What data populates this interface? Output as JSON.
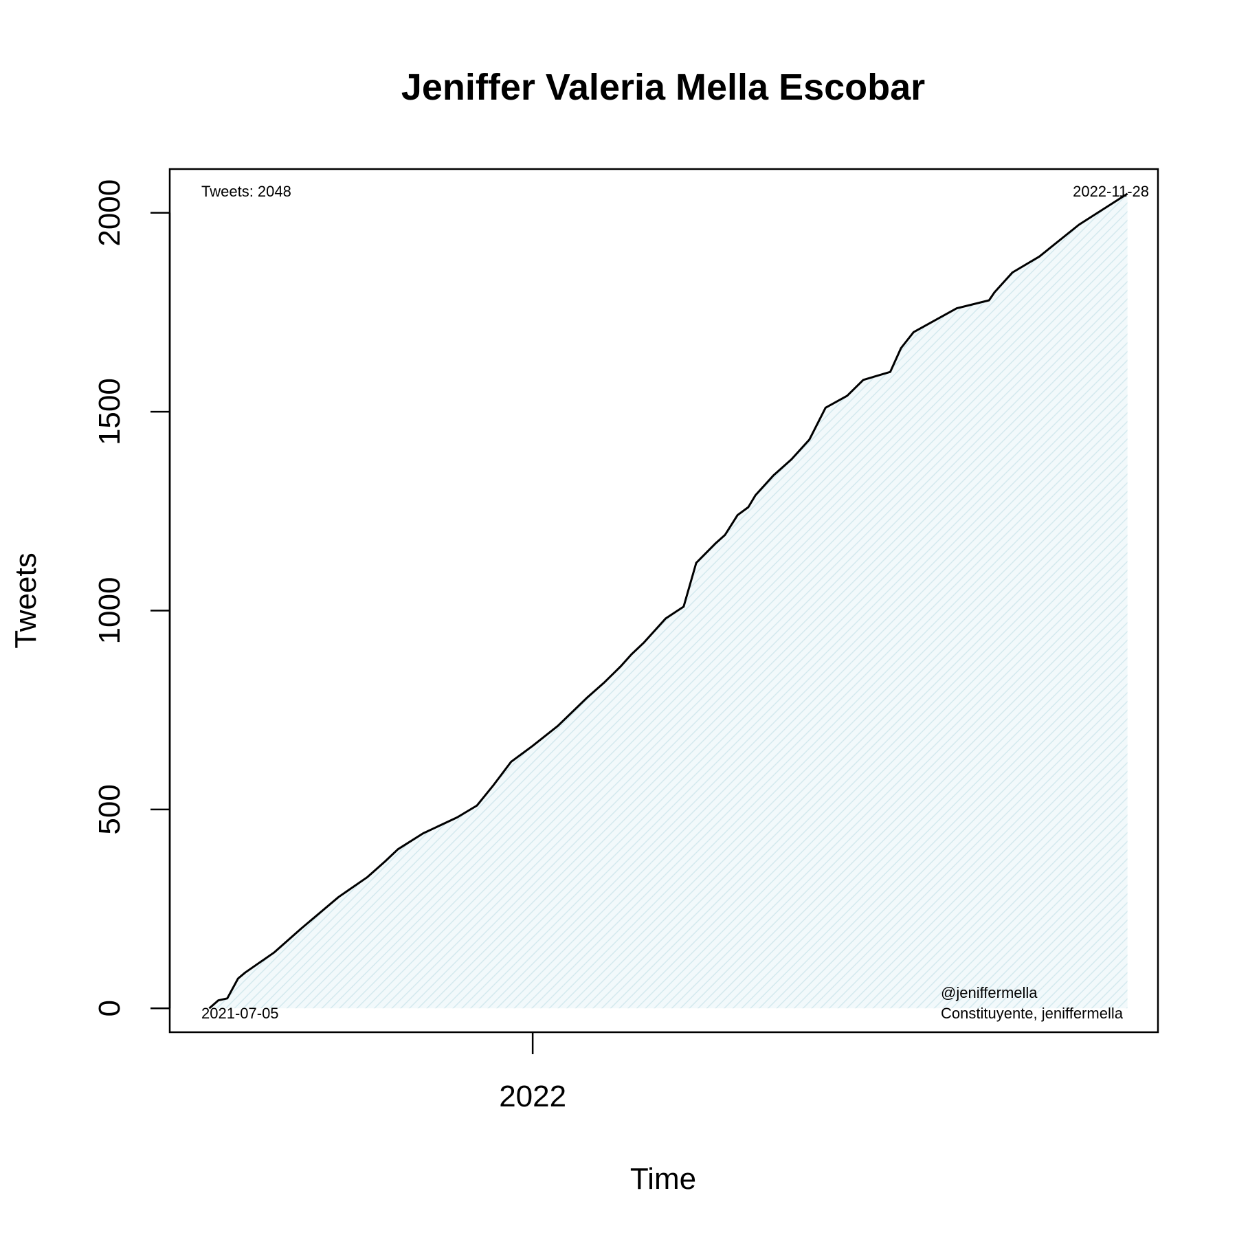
{
  "chart_data": {
    "type": "area",
    "title": "Jeniffer Valeria Mella Escobar",
    "xlabel": "Time",
    "ylabel": "Tweets",
    "x_start": "2021-07-05",
    "x_end": "2022-11-28",
    "xlim": [
      "2021-06-13",
      "2022-12-15"
    ],
    "ylim": [
      -60,
      2110
    ],
    "x_ticks": [
      {
        "date": "2022-01-01",
        "label": "2022"
      }
    ],
    "y_ticks": [
      0,
      500,
      1000,
      1500,
      2000
    ],
    "grid": false,
    "line_color": "#000000",
    "fill_color": "#e4f2f5",
    "series": [
      {
        "x": [
          "2021-07-05",
          "2021-07-10",
          "2021-07-15",
          "2021-07-21",
          "2021-07-25",
          "2021-08-10",
          "2021-08-25",
          "2021-09-15",
          "2021-10-01",
          "2021-10-11",
          "2021-10-18",
          "2021-11-01",
          "2021-11-20",
          "2021-12-01",
          "2021-12-10",
          "2021-12-20",
          "2022-01-01",
          "2022-01-15",
          "2022-01-31",
          "2022-02-10",
          "2022-02-19",
          "2022-02-25",
          "2022-03-04",
          "2022-03-10",
          "2022-03-16",
          "2022-03-26",
          "2022-04-02",
          "2022-04-13",
          "2022-04-18",
          "2022-04-25",
          "2022-05-01",
          "2022-05-05",
          "2022-05-15",
          "2022-05-25",
          "2022-06-04",
          "2022-06-13",
          "2022-06-25",
          "2022-07-04",
          "2022-07-19",
          "2022-07-25",
          "2022-08-01",
          "2022-08-13",
          "2022-08-25",
          "2022-09-12",
          "2022-09-15",
          "2022-09-25",
          "2022-10-10",
          "2022-11-01",
          "2022-11-28"
        ],
        "y": [
          0,
          20,
          25,
          75,
          90,
          140,
          200,
          280,
          330,
          370,
          400,
          440,
          480,
          510,
          560,
          620,
          660,
          710,
          780,
          820,
          860,
          890,
          920,
          950,
          980,
          1010,
          1120,
          1170,
          1190,
          1240,
          1260,
          1290,
          1340,
          1380,
          1430,
          1510,
          1540,
          1580,
          1600,
          1660,
          1700,
          1730,
          1760,
          1780,
          1800,
          1850,
          1890,
          1970,
          2048
        ]
      }
    ]
  },
  "annotations": {
    "count_label": "Tweets: 2048",
    "end_date": "2022-11-28",
    "start_date": "2021-07-05",
    "handle": "@jeniffermella",
    "description": "Constituyente, jeniffermella"
  }
}
